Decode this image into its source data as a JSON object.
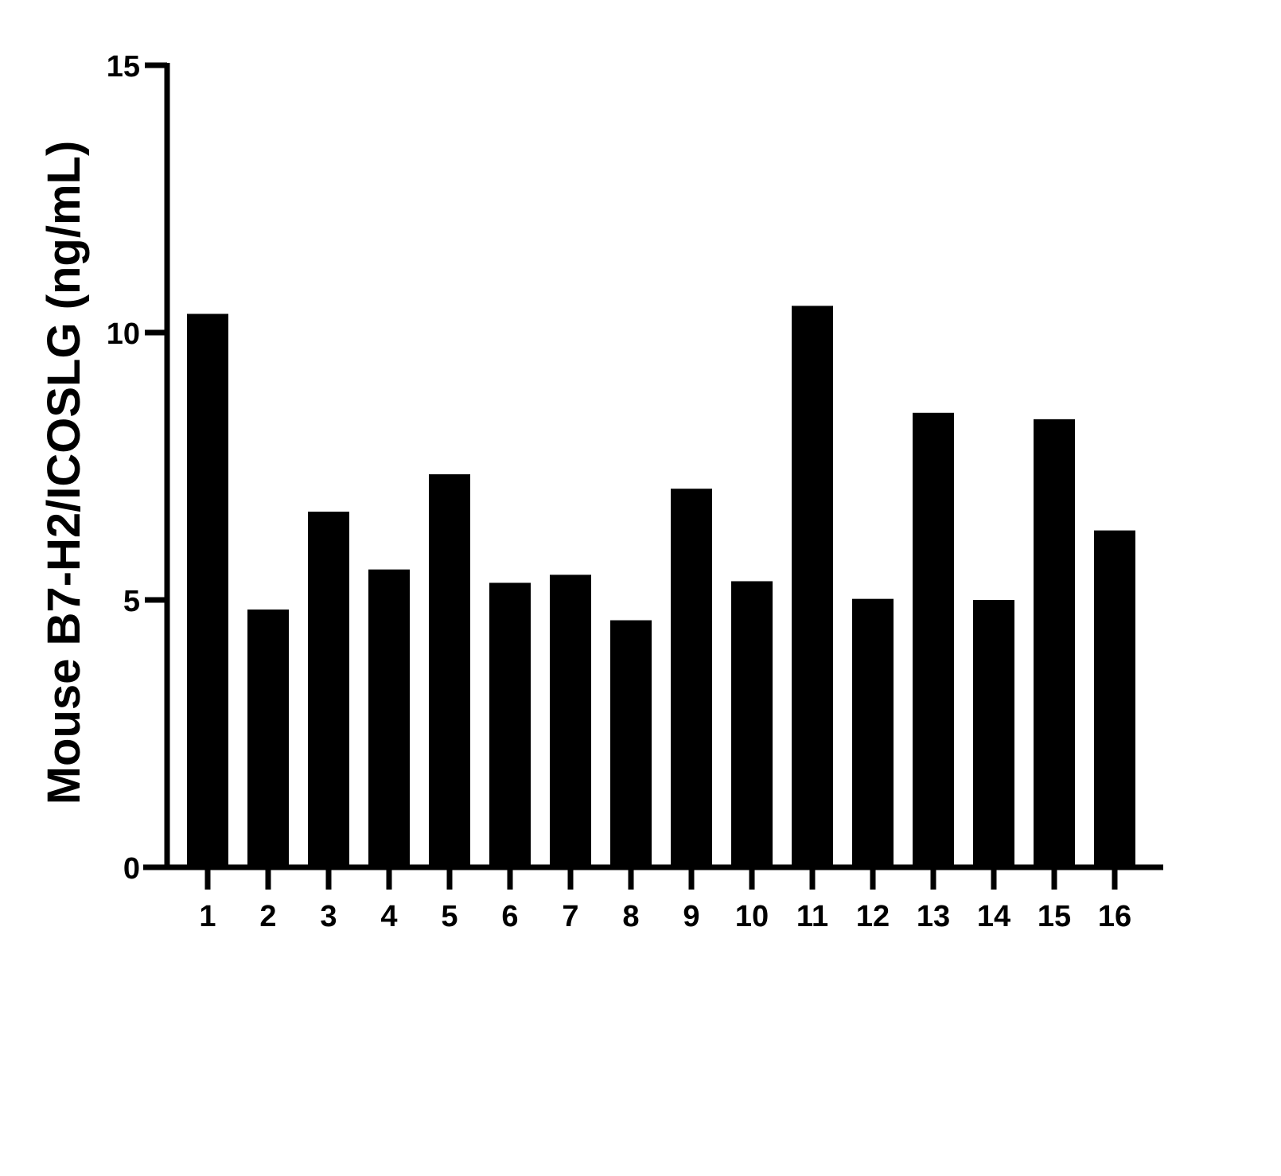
{
  "chart_data": {
    "type": "bar",
    "title": "",
    "xlabel": "",
    "ylabel": "Mouse B7-H2/ICOSLG (ng/mL)",
    "categories": [
      "1",
      "2",
      "3",
      "4",
      "5",
      "6",
      "7",
      "8",
      "9",
      "10",
      "11",
      "12",
      "13",
      "14",
      "15",
      "16"
    ],
    "values": [
      10.35,
      4.82,
      6.65,
      5.57,
      7.35,
      5.32,
      5.47,
      4.62,
      7.08,
      5.35,
      10.5,
      5.02,
      8.5,
      5.0,
      8.38,
      6.3
    ],
    "ylim": [
      0,
      15
    ],
    "yticks": [
      "0",
      "5",
      "10",
      "15"
    ],
    "grid": false,
    "legend": "none",
    "bar_color": "#000000"
  }
}
